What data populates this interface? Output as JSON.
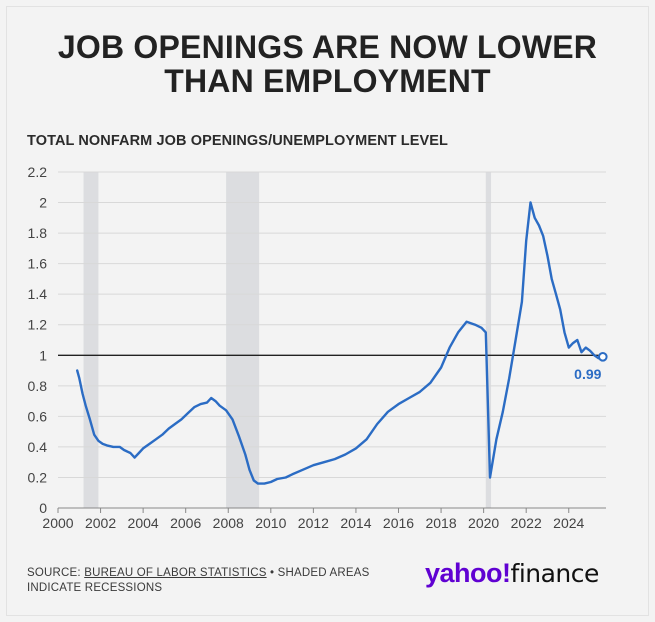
{
  "headline": {
    "line1": "JOB OPENINGS ARE NOW LOWER",
    "line2": "THAN EMPLOYMENT"
  },
  "chart_data": {
    "type": "line",
    "title": "JOB OPENINGS ARE NOW LOWER THAN EMPLOYMENT",
    "subtitle": "TOTAL NONFARM JOB OPENINGS/UNEMPLOYMENT LEVEL",
    "xlim": [
      2000,
      2025.75
    ],
    "ylim": [
      0,
      2.2
    ],
    "xticks": [
      "2000",
      "2002",
      "2004",
      "2006",
      "2008",
      "2010",
      "2012",
      "2014",
      "2016",
      "2018",
      "2020",
      "2022",
      "2024"
    ],
    "yticks": [
      "0",
      "0.2",
      "0.4",
      "0.6",
      "0.8",
      "1",
      "1.2",
      "1.4",
      "1.6",
      "1.8",
      "2",
      "2.2"
    ],
    "grid": true,
    "reference_line": 1,
    "recessions": [
      [
        2001.2,
        2001.9
      ],
      [
        2007.9,
        2009.45
      ],
      [
        2020.1,
        2020.35
      ]
    ],
    "end_label": "0.99",
    "line_color": "#2b6cc4",
    "series": [
      {
        "name": "",
        "x": [
          2000.9,
          2001.0,
          2001.15,
          2001.3,
          2001.5,
          2001.7,
          2001.9,
          2002.1,
          2002.3,
          2002.6,
          2002.9,
          2003.1,
          2003.4,
          2003.6,
          2003.8,
          2004.0,
          2004.3,
          2004.6,
          2004.9,
          2005.2,
          2005.5,
          2005.8,
          2006.1,
          2006.4,
          2006.7,
          2007.0,
          2007.2,
          2007.4,
          2007.6,
          2007.9,
          2008.2,
          2008.5,
          2008.8,
          2009.0,
          2009.2,
          2009.4,
          2009.7,
          2010.0,
          2010.3,
          2010.7,
          2011.0,
          2011.5,
          2012.0,
          2012.5,
          2013.0,
          2013.5,
          2014.0,
          2014.5,
          2015.0,
          2015.5,
          2016.0,
          2016.5,
          2017.0,
          2017.5,
          2018.0,
          2018.4,
          2018.8,
          2019.2,
          2019.6,
          2019.9,
          2020.1,
          2020.3,
          2020.6,
          2020.9,
          2021.2,
          2021.5,
          2021.8,
          2022.0,
          2022.2,
          2022.4,
          2022.6,
          2022.8,
          2023.0,
          2023.2,
          2023.4,
          2023.6,
          2023.8,
          2024.0,
          2024.2,
          2024.4,
          2024.6,
          2024.8,
          2025.0,
          2025.2,
          2025.4,
          2025.6
        ],
        "values": [
          0.9,
          0.85,
          0.75,
          0.67,
          0.58,
          0.48,
          0.44,
          0.42,
          0.41,
          0.4,
          0.4,
          0.38,
          0.36,
          0.33,
          0.36,
          0.39,
          0.42,
          0.45,
          0.48,
          0.52,
          0.55,
          0.58,
          0.62,
          0.66,
          0.68,
          0.69,
          0.72,
          0.7,
          0.67,
          0.64,
          0.58,
          0.47,
          0.35,
          0.25,
          0.18,
          0.16,
          0.16,
          0.17,
          0.19,
          0.2,
          0.22,
          0.25,
          0.28,
          0.3,
          0.32,
          0.35,
          0.39,
          0.45,
          0.55,
          0.63,
          0.68,
          0.72,
          0.76,
          0.82,
          0.92,
          1.05,
          1.15,
          1.22,
          1.2,
          1.18,
          1.15,
          0.2,
          0.45,
          0.63,
          0.85,
          1.1,
          1.35,
          1.75,
          2.0,
          1.9,
          1.85,
          1.78,
          1.65,
          1.5,
          1.4,
          1.3,
          1.15,
          1.05,
          1.08,
          1.1,
          1.02,
          1.05,
          1.03,
          1.0,
          0.98,
          0.99
        ]
      }
    ]
  },
  "source": {
    "prefix": "SOURCE: ",
    "link": "BUREAU OF LABOR STATISTICS",
    "suffix": " • SHADED AREAS",
    "line2": "INDICATE RECESSIONS"
  },
  "logo": {
    "yahoo": "yahoo",
    "bang": "!",
    "finance": "finance",
    "yahoo_color": "#6001d2"
  }
}
